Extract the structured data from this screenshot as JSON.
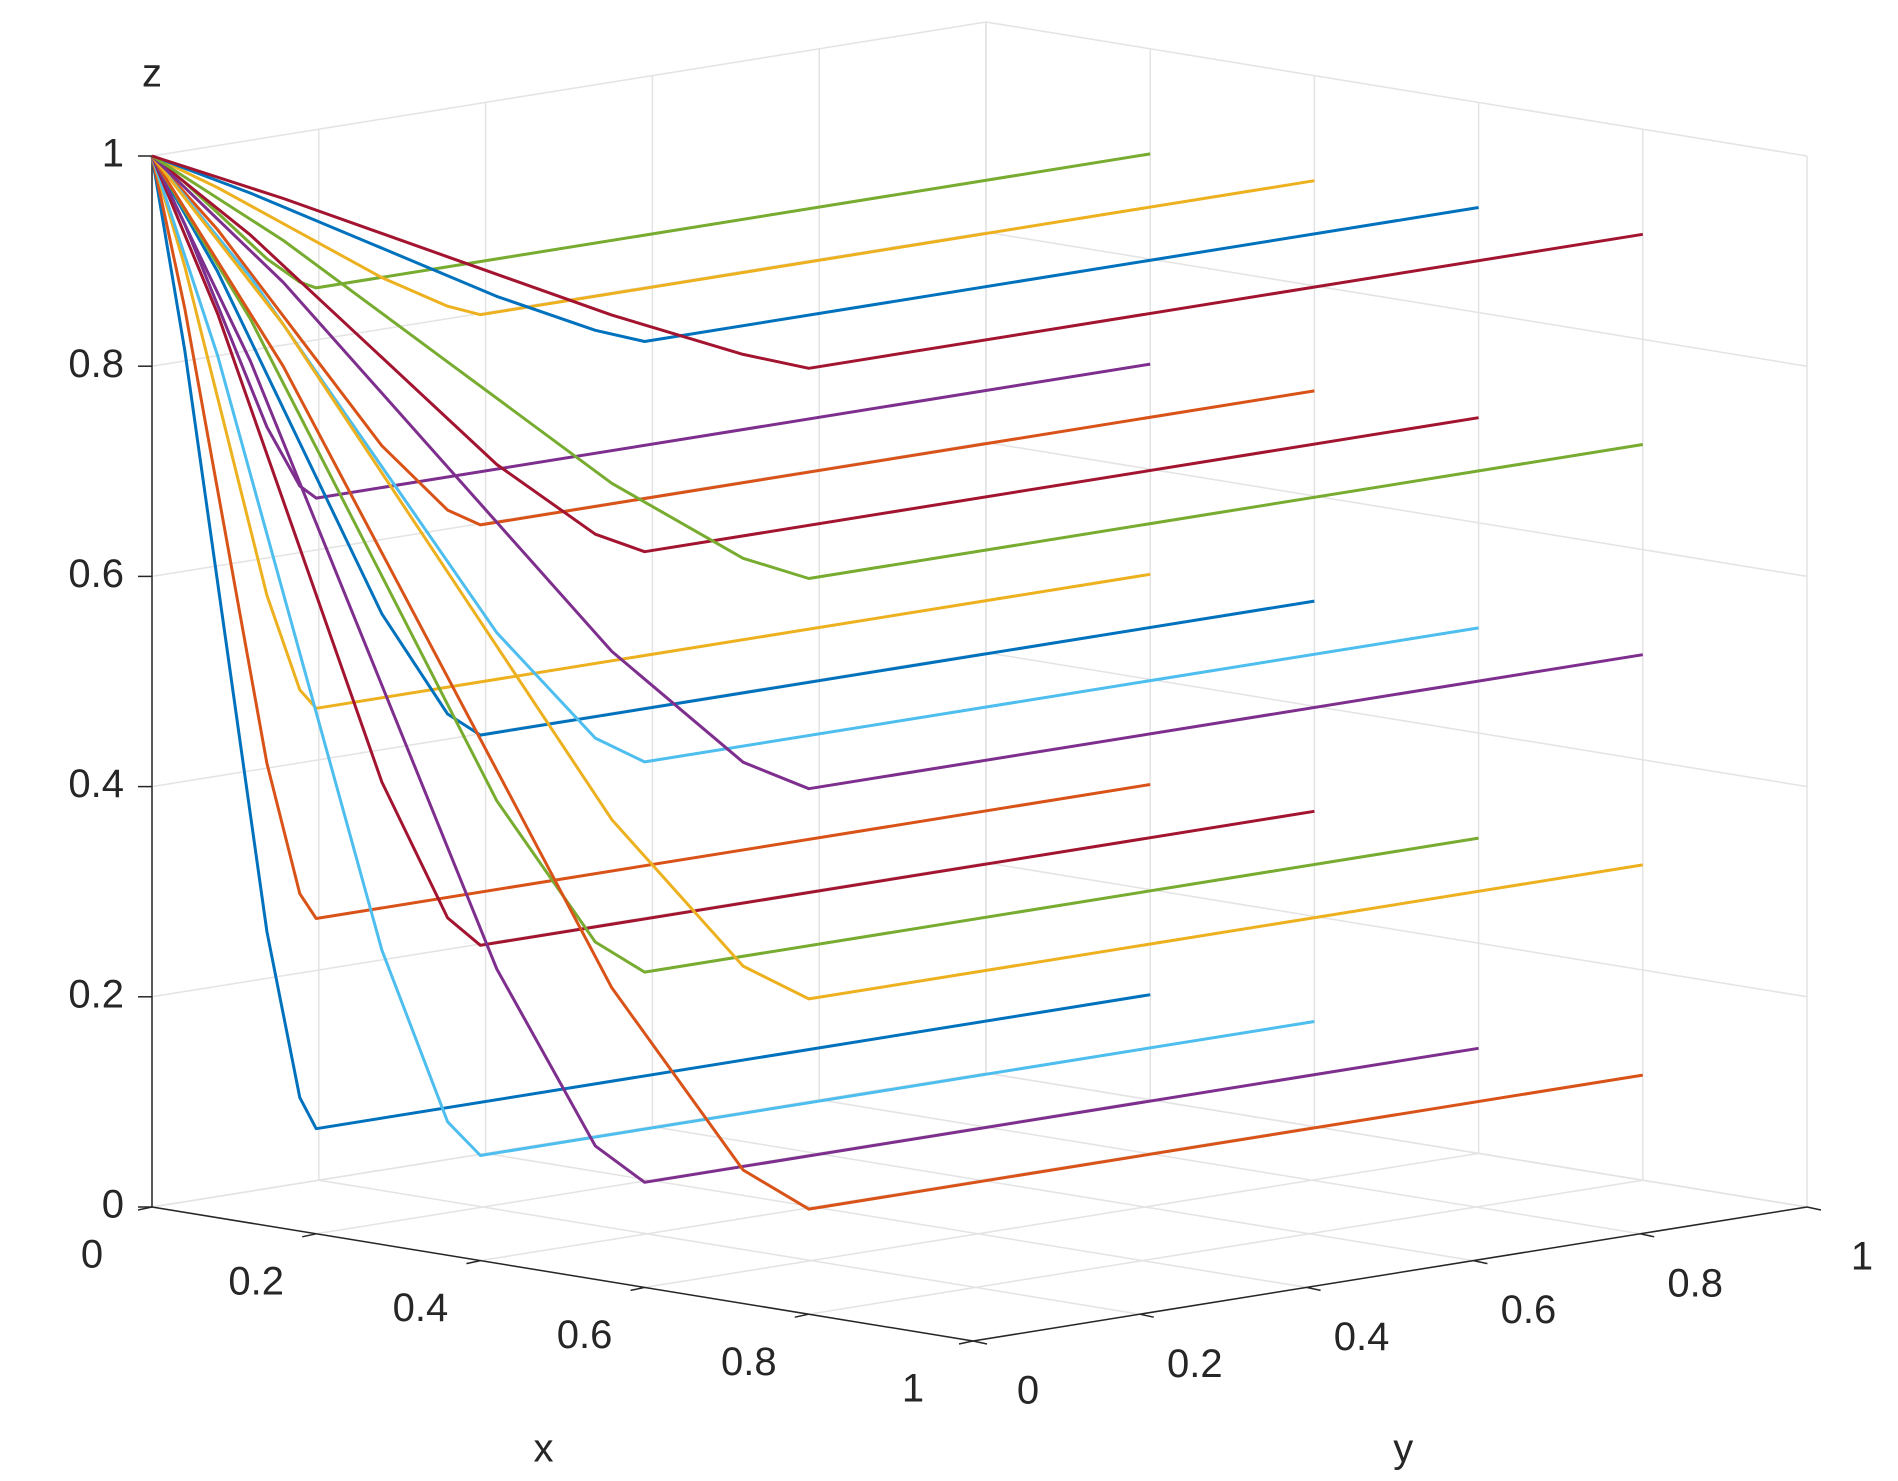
{
  "chart_data": {
    "type": "line3d",
    "xlabel": "x",
    "ylabel": "y",
    "zlabel": "z",
    "xlim": [
      0,
      1
    ],
    "ylim": [
      0,
      1
    ],
    "zlim": [
      0,
      1
    ],
    "xticks": [
      0,
      0.2,
      0.4,
      0.6,
      0.8,
      1
    ],
    "yticks": [
      0,
      0.2,
      0.4,
      0.6,
      0.8,
      1
    ],
    "zticks": [
      0,
      0.2,
      0.4,
      0.6,
      0.8,
      1
    ],
    "grid": true,
    "series": [
      {
        "color": "#0072BD",
        "x": [
          0.2,
          0.2,
          0.18,
          0.14,
          0.09,
          0.04,
          0
        ],
        "y": [
          1,
          0,
          0,
          0,
          0,
          0,
          0
        ],
        "z": [
          0.1,
          0.1,
          0.127,
          0.28,
          0.55,
          0.82,
          1
        ]
      },
      {
        "color": "#D95319",
        "x": [
          0.2,
          0.2,
          0.18,
          0.14,
          0.09,
          0.04,
          0
        ],
        "y": [
          1,
          0,
          0,
          0,
          0,
          0,
          0
        ],
        "z": [
          0.3,
          0.3,
          0.321,
          0.44,
          0.65,
          0.86,
          1
        ]
      },
      {
        "color": "#EDB120",
        "x": [
          0.2,
          0.2,
          0.18,
          0.14,
          0.09,
          0.04,
          0
        ],
        "y": [
          1,
          0,
          0,
          0,
          0,
          0,
          0
        ],
        "z": [
          0.5,
          0.5,
          0.515,
          0.6,
          0.75,
          0.9,
          1
        ]
      },
      {
        "color": "#7E2F8E",
        "x": [
          0.2,
          0.2,
          0.18,
          0.14,
          0.09,
          0.04,
          0
        ],
        "y": [
          1,
          0,
          0,
          0,
          0,
          0,
          0
        ],
        "z": [
          0.7,
          0.7,
          0.709,
          0.76,
          0.85,
          0.94,
          1
        ]
      },
      {
        "color": "#77AC30",
        "x": [
          0.2,
          0.2,
          0.18,
          0.14,
          0.09,
          0.04,
          0
        ],
        "y": [
          1,
          0,
          0,
          0,
          0,
          0,
          0
        ],
        "z": [
          0.9,
          0.9,
          0.903,
          0.92,
          0.95,
          0.98,
          1
        ]
      },
      {
        "color": "#4DBEEE",
        "x": [
          0.4,
          0.4,
          0.36,
          0.28,
          0.18,
          0.08,
          0
        ],
        "y": [
          1,
          0,
          0,
          0,
          0,
          0,
          0
        ],
        "z": [
          0.1,
          0.1,
          0.127,
          0.28,
          0.55,
          0.82,
          1
        ]
      },
      {
        "color": "#A2142F",
        "x": [
          0.4,
          0.4,
          0.36,
          0.28,
          0.18,
          0.08,
          0
        ],
        "y": [
          1,
          0,
          0,
          0,
          0,
          0,
          0
        ],
        "z": [
          0.3,
          0.3,
          0.321,
          0.44,
          0.65,
          0.86,
          1
        ]
      },
      {
        "color": "#0072BD",
        "x": [
          0.4,
          0.4,
          0.36,
          0.28,
          0.18,
          0.08,
          0
        ],
        "y": [
          1,
          0,
          0,
          0,
          0,
          0,
          0
        ],
        "z": [
          0.5,
          0.5,
          0.515,
          0.6,
          0.75,
          0.9,
          1
        ]
      },
      {
        "color": "#D95319",
        "x": [
          0.4,
          0.4,
          0.36,
          0.28,
          0.18,
          0.08,
          0
        ],
        "y": [
          1,
          0,
          0,
          0,
          0,
          0,
          0
        ],
        "z": [
          0.7,
          0.7,
          0.709,
          0.76,
          0.85,
          0.94,
          1
        ]
      },
      {
        "color": "#EDB120",
        "x": [
          0.4,
          0.4,
          0.36,
          0.28,
          0.18,
          0.08,
          0
        ],
        "y": [
          1,
          0,
          0,
          0,
          0,
          0,
          0
        ],
        "z": [
          0.9,
          0.9,
          0.903,
          0.92,
          0.95,
          0.98,
          1
        ]
      },
      {
        "color": "#7E2F8E",
        "x": [
          0.6,
          0.6,
          0.54,
          0.42,
          0.27,
          0.12,
          0
        ],
        "y": [
          1,
          0,
          0,
          0,
          0,
          0,
          0
        ],
        "z": [
          0.1,
          0.1,
          0.127,
          0.28,
          0.55,
          0.82,
          1
        ]
      },
      {
        "color": "#77AC30",
        "x": [
          0.6,
          0.6,
          0.54,
          0.42,
          0.27,
          0.12,
          0
        ],
        "y": [
          1,
          0,
          0,
          0,
          0,
          0,
          0
        ],
        "z": [
          0.3,
          0.3,
          0.321,
          0.44,
          0.65,
          0.86,
          1
        ]
      },
      {
        "color": "#4DBEEE",
        "x": [
          0.6,
          0.6,
          0.54,
          0.42,
          0.27,
          0.12,
          0
        ],
        "y": [
          1,
          0,
          0,
          0,
          0,
          0,
          0
        ],
        "z": [
          0.5,
          0.5,
          0.515,
          0.6,
          0.75,
          0.9,
          1
        ]
      },
      {
        "color": "#A2142F",
        "x": [
          0.6,
          0.6,
          0.54,
          0.42,
          0.27,
          0.12,
          0
        ],
        "y": [
          1,
          0,
          0,
          0,
          0,
          0,
          0
        ],
        "z": [
          0.7,
          0.7,
          0.709,
          0.76,
          0.85,
          0.94,
          1
        ]
      },
      {
        "color": "#0072BD",
        "x": [
          0.6,
          0.6,
          0.54,
          0.42,
          0.27,
          0.12,
          0
        ],
        "y": [
          1,
          0,
          0,
          0,
          0,
          0,
          0
        ],
        "z": [
          0.9,
          0.9,
          0.903,
          0.92,
          0.95,
          0.98,
          1
        ]
      },
      {
        "color": "#D95319",
        "x": [
          0.8,
          0.8,
          0.72,
          0.56,
          0.36,
          0.16,
          0
        ],
        "y": [
          1,
          0,
          0,
          0,
          0,
          0,
          0
        ],
        "z": [
          0.1,
          0.1,
          0.127,
          0.28,
          0.55,
          0.82,
          1
        ]
      },
      {
        "color": "#EDB120",
        "x": [
          0.8,
          0.8,
          0.72,
          0.56,
          0.36,
          0.16,
          0
        ],
        "y": [
          1,
          0,
          0,
          0,
          0,
          0,
          0
        ],
        "z": [
          0.3,
          0.3,
          0.321,
          0.44,
          0.65,
          0.86,
          1
        ]
      },
      {
        "color": "#7E2F8E",
        "x": [
          0.8,
          0.8,
          0.72,
          0.56,
          0.36,
          0.16,
          0
        ],
        "y": [
          1,
          0,
          0,
          0,
          0,
          0,
          0
        ],
        "z": [
          0.5,
          0.5,
          0.515,
          0.6,
          0.75,
          0.9,
          1
        ]
      },
      {
        "color": "#77AC30",
        "x": [
          0.8,
          0.8,
          0.72,
          0.56,
          0.36,
          0.16,
          0
        ],
        "y": [
          1,
          0,
          0,
          0,
          0,
          0,
          0
        ],
        "z": [
          0.7,
          0.7,
          0.709,
          0.76,
          0.85,
          0.94,
          1
        ]
      },
      {
        "color": "#A2142F",
        "x": [
          0.8,
          0.8,
          0.72,
          0.56,
          0.36,
          0.16,
          0
        ],
        "y": [
          1,
          0,
          0,
          0,
          0,
          0,
          0
        ],
        "z": [
          0.9,
          0.9,
          0.903,
          0.92,
          0.95,
          0.98,
          1
        ]
      }
    ]
  }
}
